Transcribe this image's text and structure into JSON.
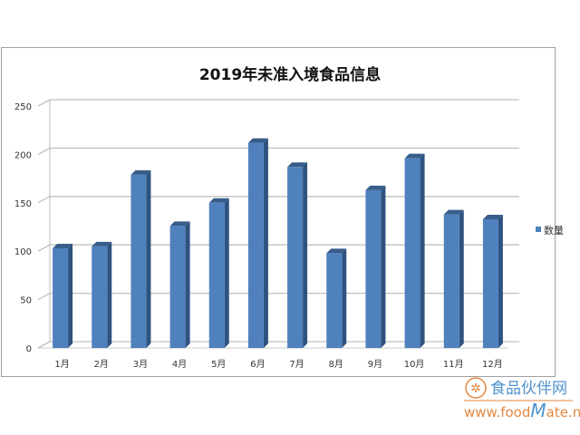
{
  "chart_data": {
    "type": "bar",
    "style": "3d-column",
    "title": "2019年未准入境食品信息",
    "categories": [
      "1月",
      "2月",
      "3月",
      "4月",
      "5月",
      "6月",
      "7月",
      "8月",
      "9月",
      "10月",
      "11月",
      "12月"
    ],
    "series": [
      {
        "name": "数量",
        "values": [
          103,
          105,
          179,
          126,
          150,
          212,
          187,
          98,
          163,
          196,
          138,
          133
        ],
        "color": "#4f81bd"
      }
    ],
    "yticks": [
      "0",
      "50",
      "100",
      "150",
      "200",
      "250"
    ],
    "ylim": [
      0,
      250
    ],
    "grid": true,
    "legend": "right"
  },
  "watermark": {
    "cn": "食品伙伴网",
    "url_pre": "www.food",
    "url_m": "M",
    "url_post": "ate.net"
  }
}
